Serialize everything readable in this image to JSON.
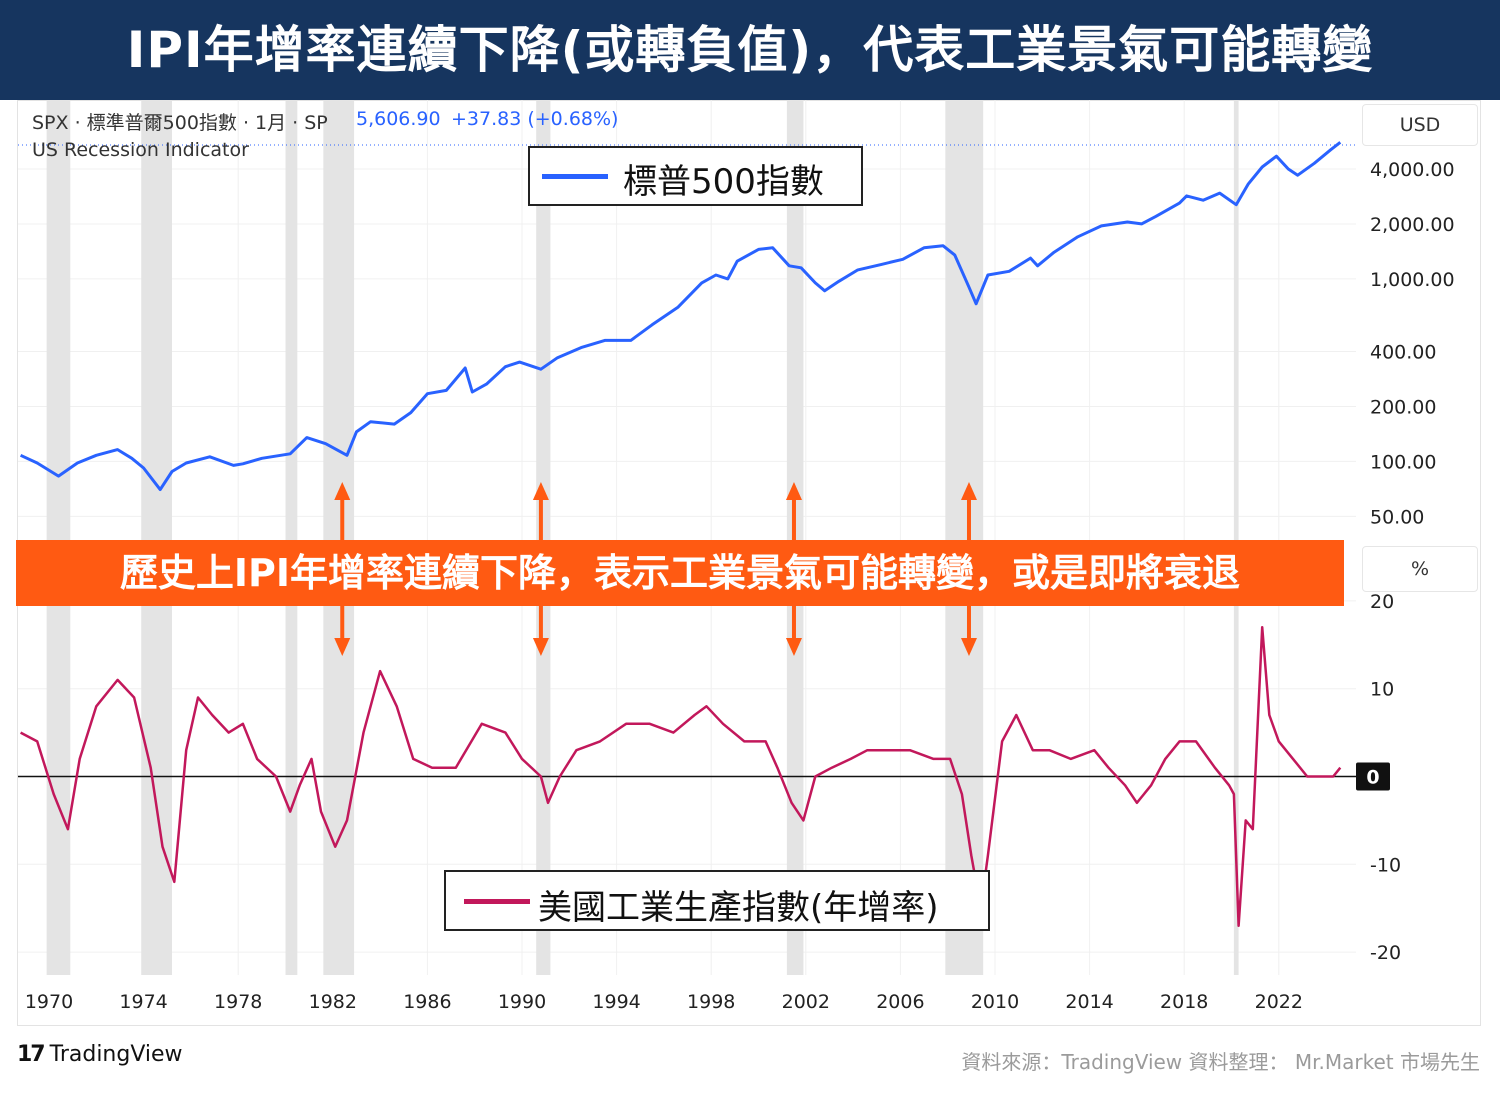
{
  "banner": {
    "title": "IPI年增率連續下降(或轉負值)，代表工業景氣可能轉變"
  },
  "header": {
    "symbol": "SPX · 標準普爾500指數 · 1月 · SP",
    "price": "5,606.90",
    "change": "+37.83 (+0.68%)",
    "indicator": "US Recession Indicator",
    "currency": "USD",
    "pct_label": "%"
  },
  "callout": {
    "text": "歷史上IPI年增率連續下降，表示工業景氣可能轉變，或是即將衰退"
  },
  "footer": {
    "logo_mark": "17",
    "logo_name": "TradingView",
    "source": "資料來源：TradingView  資料整理： Mr.Market 市場先生"
  },
  "colors": {
    "spx": "#2962ff",
    "ipi": "#c2185b",
    "recession": "#e4e4e4",
    "callout": "#ff5a12",
    "arrow": "#ff5a12",
    "banner": "#16355f"
  },
  "chart_data": [
    {
      "type": "line",
      "title": "",
      "xlabel": "",
      "ylabel": "USD",
      "y_scale": "log",
      "ylim": [
        40,
        6500
      ],
      "legend": {
        "label": "標普500指數",
        "placement": "top-center"
      },
      "y_ticks": [
        "4,000.00",
        "2,000.00",
        "1,000.00",
        "400.00",
        "200.00",
        "100.00",
        "50.00"
      ],
      "y_tick_values": [
        4000,
        2000,
        1000,
        400,
        200,
        100,
        50
      ],
      "x_ticks": [
        "1970",
        "1974",
        "1978",
        "1982",
        "1986",
        "1990",
        "1994",
        "1998",
        "2002",
        "2006",
        "2010",
        "2014",
        "2018",
        "2022"
      ],
      "x_tick_values": [
        1970,
        1974,
        1978,
        1982,
        1986,
        1990,
        1994,
        1998,
        2002,
        2006,
        2010,
        2014,
        2018,
        2022
      ],
      "recessions": [
        [
          1969.9,
          1970.9
        ],
        [
          1973.9,
          1975.2
        ],
        [
          1980.0,
          1980.5
        ],
        [
          1981.6,
          1982.9
        ],
        [
          1990.6,
          1991.2
        ],
        [
          2001.2,
          2001.9
        ],
        [
          2007.9,
          2009.5
        ],
        [
          2020.1,
          2020.3
        ]
      ],
      "series": [
        {
          "name": "標普500指數",
          "x": [
            1968.8,
            1969.5,
            1970.4,
            1971.2,
            1972.0,
            1972.9,
            1973.5,
            1974.0,
            1974.7,
            1975.2,
            1975.8,
            1976.8,
            1977.8,
            1978.2,
            1979.0,
            1980.2,
            1980.9,
            1981.7,
            1982.6,
            1983.0,
            1983.6,
            1984.6,
            1985.3,
            1986.0,
            1986.8,
            1987.6,
            1987.9,
            1988.5,
            1989.3,
            1989.9,
            1990.8,
            1991.5,
            1992.5,
            1993.5,
            1994.6,
            1995.5,
            1996.6,
            1997.6,
            1998.2,
            1998.7,
            1999.1,
            2000.0,
            2000.6,
            2001.3,
            2001.8,
            2002.4,
            2002.8,
            2003.4,
            2004.2,
            2005.2,
            2006.1,
            2007.0,
            2007.8,
            2008.3,
            2008.9,
            2009.2,
            2009.7,
            2010.6,
            2011.5,
            2011.8,
            2012.5,
            2013.5,
            2014.5,
            2015.6,
            2016.2,
            2016.8,
            2017.8,
            2018.1,
            2018.8,
            2019.5,
            2020.2,
            2020.7,
            2021.3,
            2021.9,
            2022.4,
            2022.8,
            2023.5,
            2024.2,
            2024.6
          ],
          "values": [
            108,
            98,
            83,
            98,
            108,
            116,
            104,
            92,
            70,
            88,
            98,
            106,
            95,
            97,
            104,
            110,
            135,
            125,
            108,
            145,
            165,
            160,
            185,
            235,
            245,
            325,
            240,
            265,
            330,
            350,
            320,
            370,
            420,
            460,
            460,
            560,
            700,
            950,
            1050,
            1000,
            1250,
            1450,
            1480,
            1180,
            1150,
            950,
            860,
            970,
            1120,
            1200,
            1280,
            1480,
            1520,
            1350,
            900,
            730,
            1050,
            1100,
            1300,
            1180,
            1400,
            1700,
            1950,
            2050,
            2000,
            2200,
            2600,
            2850,
            2700,
            2950,
            2550,
            3300,
            4100,
            4700,
            4000,
            3700,
            4300,
            5100,
            5600
          ]
        }
      ]
    },
    {
      "type": "line",
      "title": "",
      "xlabel": "",
      "ylabel": "%",
      "ylim": [
        -23,
        21
      ],
      "legend": {
        "label": "美國工業生產指數(年增率)",
        "placement": "bottom-center"
      },
      "y_ticks": [
        "20",
        "10",
        "-10",
        "-20"
      ],
      "y_tick_values": [
        20,
        10,
        -10,
        -20
      ],
      "zero_label": "0",
      "series": [
        {
          "name": "美國工業生產指數(年增率)",
          "x": [
            1968.8,
            1969.5,
            1970.2,
            1970.8,
            1971.3,
            1972.0,
            1972.9,
            1973.6,
            1974.3,
            1974.8,
            1975.3,
            1975.8,
            1976.3,
            1976.9,
            1977.6,
            1978.2,
            1978.8,
            1979.6,
            1980.2,
            1980.6,
            1981.1,
            1981.5,
            1982.1,
            1982.6,
            1983.3,
            1984.0,
            1984.7,
            1985.4,
            1986.2,
            1987.2,
            1988.3,
            1989.3,
            1990.0,
            1990.8,
            1991.1,
            1991.6,
            1992.3,
            1993.3,
            1994.4,
            1995.4,
            1996.4,
            1997.3,
            1997.8,
            1998.5,
            1999.4,
            2000.3,
            2000.8,
            2001.4,
            2001.9,
            2002.4,
            2003.1,
            2003.9,
            2004.6,
            2005.4,
            2006.4,
            2007.4,
            2008.1,
            2008.6,
            2009.0,
            2009.4,
            2009.7,
            2010.3,
            2010.9,
            2011.6,
            2012.3,
            2013.2,
            2014.2,
            2014.8,
            2015.5,
            2016.0,
            2016.6,
            2017.2,
            2017.8,
            2018.5,
            2019.3,
            2019.9,
            2020.1,
            2020.3,
            2020.6,
            2020.9,
            2021.3,
            2021.6,
            2022.0,
            2022.6,
            2023.2,
            2023.8,
            2024.3,
            2024.6
          ],
          "values": [
            5,
            4,
            -2,
            -6,
            2,
            8,
            11,
            9,
            1,
            -8,
            -12,
            3,
            9,
            7,
            5,
            6,
            2,
            0,
            -4,
            -1,
            2,
            -4,
            -8,
            -5,
            5,
            12,
            8,
            2,
            1,
            1,
            6,
            5,
            2,
            0,
            -3,
            0,
            3,
            4,
            6,
            6,
            5,
            7,
            8,
            6,
            4,
            4,
            1,
            -3,
            -5,
            0,
            1,
            2,
            3,
            3,
            3,
            2,
            2,
            -2,
            -9,
            -15,
            -9,
            4,
            7,
            3,
            3,
            2,
            3,
            1,
            -1,
            -3,
            -1,
            2,
            4,
            4,
            1,
            -1,
            -2,
            -17,
            -5,
            -6,
            17,
            7,
            4,
            2,
            0,
            0,
            0,
            1
          ]
        }
      ]
    }
  ]
}
